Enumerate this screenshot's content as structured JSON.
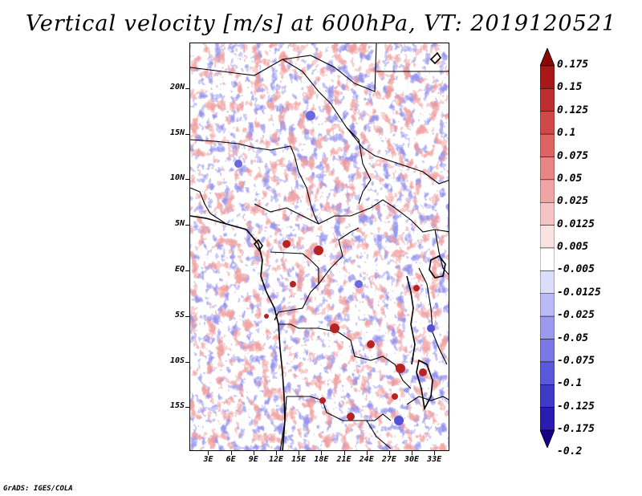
{
  "title": "Vertical velocity [m/s] at 600hPa, VT: 2019120521",
  "footer": "GrADS: IGES/COLA",
  "map": {
    "lat_ticks": [
      {
        "label": "20N",
        "lat": 20
      },
      {
        "label": "15N",
        "lat": 15
      },
      {
        "label": "10N",
        "lat": 10
      },
      {
        "label": "5N",
        "lat": 5
      },
      {
        "label": "EQ",
        "lat": 0
      },
      {
        "label": "5S",
        "lat": -5
      },
      {
        "label": "10S",
        "lat": -10
      },
      {
        "label": "15S",
        "lat": -15
      }
    ],
    "lon_ticks": [
      {
        "label": "3E",
        "lon": 3
      },
      {
        "label": "6E",
        "lon": 6
      },
      {
        "label": "9E",
        "lon": 9
      },
      {
        "label": "12E",
        "lon": 12
      },
      {
        "label": "15E",
        "lon": 15
      },
      {
        "label": "18E",
        "lon": 18
      },
      {
        "label": "21E",
        "lon": 21
      },
      {
        "label": "24E",
        "lon": 24
      },
      {
        "label": "27E",
        "lon": 27
      },
      {
        "label": "30E",
        "lon": 30
      },
      {
        "label": "33E",
        "lon": 33
      }
    ],
    "lon_range": [
      0.5,
      35.0
    ],
    "lat_range": [
      -19.8,
      25.0
    ]
  },
  "colorbar": {
    "colors": [
      "#16008a",
      "#2a1cb0",
      "#3e3ac8",
      "#5a58dc",
      "#7a78e6",
      "#9c9aef",
      "#bcbaf6",
      "#dcdcfb",
      "#ffffff",
      "#fbe2e2",
      "#f6c4c4",
      "#f0a4a4",
      "#e88484",
      "#de6464",
      "#d04848",
      "#be2e2e",
      "#a81818",
      "#8a0808"
    ],
    "labels": [
      "0.175",
      "0.15",
      "0.125",
      "0.1",
      "0.075",
      "0.05",
      "0.025",
      "0.0125",
      "0.005",
      "-0.005",
      "-0.0125",
      "-0.025",
      "-0.05",
      "-0.075",
      "-0.1",
      "-0.125",
      "-0.175",
      "-0.2"
    ]
  }
}
